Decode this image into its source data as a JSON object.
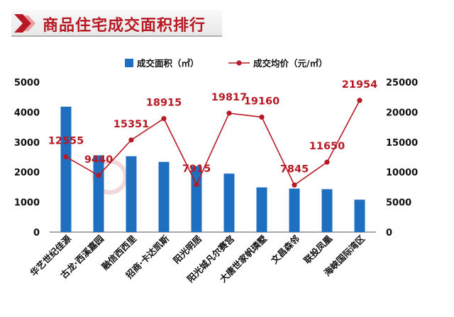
{
  "page": {
    "title": "商品住宅成交面积排行"
  },
  "colors": {
    "bar": "#1f6fc0",
    "line": "#b71a24",
    "title": "#b71a24"
  },
  "chart_data": {
    "type": "bar",
    "categories": [
      "华艺世纪佳源",
      "古龙·西溪嘉园",
      "融信西西里",
      "招商·卡达凯斯",
      "阳光明居",
      "阳光城凡尔赛宫",
      "大唐世家帆璘墅",
      "文昌森邻",
      "联投凤凰",
      "海峡国际湾区"
    ],
    "series": [
      {
        "name": "成交面积（㎡）",
        "type": "bar",
        "axis": "left",
        "values": [
          4180,
          2560,
          2530,
          2340,
          2200,
          1950,
          1490,
          1450,
          1430,
          1080
        ]
      },
      {
        "name": "成交均价（元/㎡）",
        "type": "line",
        "axis": "right",
        "values": [
          12555,
          9440,
          15351,
          18915,
          7915,
          19817,
          19160,
          7845,
          11650,
          21954
        ]
      }
    ],
    "data_labels": [
      "12555",
      "9440",
      "15351",
      "18915",
      "7915",
      "19817",
      "19160",
      "7845",
      "11650",
      "21954"
    ],
    "y_left": {
      "min": 0,
      "max": 5000,
      "ticks": [
        0,
        1000,
        2000,
        3000,
        4000,
        5000
      ]
    },
    "y_right": {
      "min": 0,
      "max": 25000,
      "ticks": [
        0,
        5000,
        10000,
        15000,
        20000,
        25000
      ]
    },
    "grid": false,
    "legend_position": "top"
  }
}
